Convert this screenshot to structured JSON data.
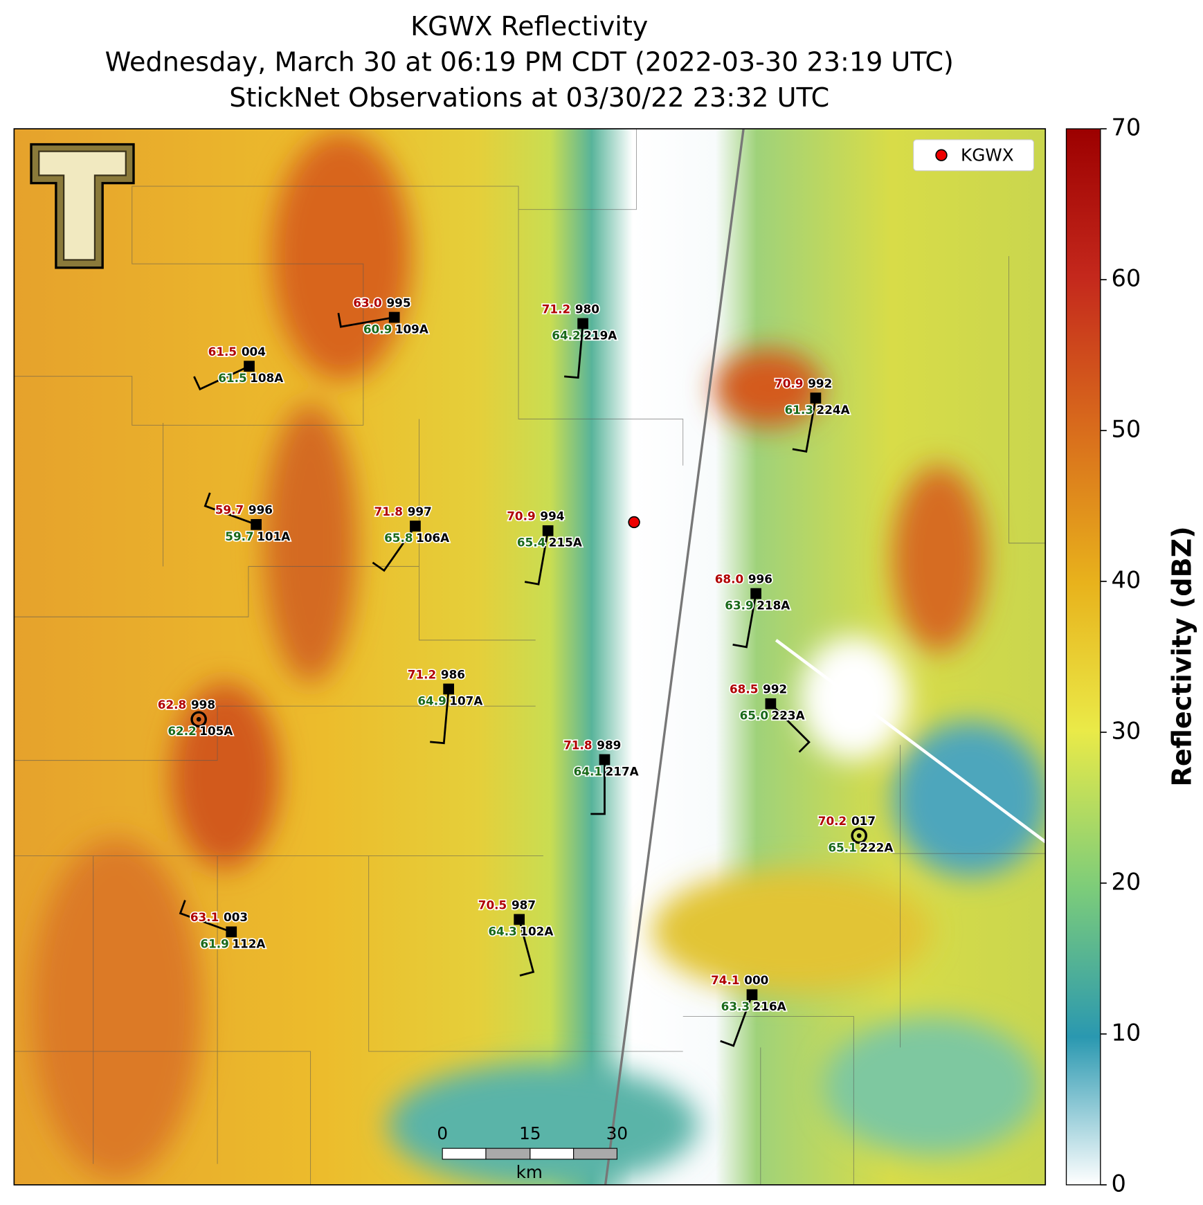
{
  "title_lines": [
    "KGWX Reflectivity",
    "Wednesday, March 30 at 06:19 PM CDT (2022-03-30 23:19 UTC)",
    "StickNet Observations at 03/30/22 23:32 UTC"
  ],
  "legend": {
    "label": "KGWX"
  },
  "colorbar": {
    "label": "Reflectivity (dBZ)",
    "range": [
      0,
      70
    ],
    "ticks": [
      0,
      10,
      20,
      30,
      40,
      50,
      60,
      70
    ]
  },
  "scale_bar": {
    "ticks": [
      "0",
      "15",
      "30"
    ],
    "unit": "km"
  },
  "stations": [
    {
      "temperature": "63.0",
      "dewpoint": "60.9",
      "pressure": "995",
      "id": "109A"
    },
    {
      "temperature": "61.5",
      "dewpoint": "61.5",
      "pressure": "004",
      "id": "108A"
    },
    {
      "temperature": "71.2",
      "dewpoint": "64.2",
      "pressure": "980",
      "id": "219A"
    },
    {
      "temperature": "70.9",
      "dewpoint": "61.3",
      "pressure": "992",
      "id": "224A"
    },
    {
      "temperature": "59.7",
      "dewpoint": "59.7",
      "pressure": "996",
      "id": "101A"
    },
    {
      "temperature": "71.8",
      "dewpoint": "65.8",
      "pressure": "997",
      "id": "106A"
    },
    {
      "temperature": "70.9",
      "dewpoint": "65.4",
      "pressure": "994",
      "id": "215A"
    },
    {
      "temperature": "68.0",
      "dewpoint": "63.9",
      "pressure": "996",
      "id": "218A"
    },
    {
      "temperature": "71.2",
      "dewpoint": "64.9",
      "pressure": "986",
      "id": "107A"
    },
    {
      "temperature": "62.8",
      "dewpoint": "62.2",
      "pressure": "998",
      "id": "105A"
    },
    {
      "temperature": "68.5",
      "dewpoint": "65.0",
      "pressure": "992",
      "id": "223A"
    },
    {
      "temperature": "71.8",
      "dewpoint": "64.1",
      "pressure": "989",
      "id": "217A"
    },
    {
      "temperature": "70.2",
      "dewpoint": "65.1",
      "pressure": "017",
      "id": "222A"
    },
    {
      "temperature": "63.1",
      "dewpoint": "61.9",
      "pressure": "003",
      "id": "112A"
    },
    {
      "temperature": "70.5",
      "dewpoint": "64.3",
      "pressure": "987",
      "id": "102A"
    },
    {
      "temperature": "74.1",
      "dewpoint": "63.3",
      "pressure": "000",
      "id": "216A"
    }
  ]
}
